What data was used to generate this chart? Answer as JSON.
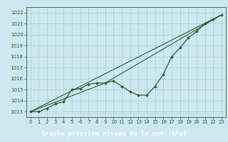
{
  "title": "Graphe pression niveau de la mer (hPa)",
  "bg_color": "#cde8f0",
  "grid_color": "#b0d4dc",
  "line_color": "#2d5a2d",
  "marker_color": "#2d5a2d",
  "xlabel_bg": "#3a6e3a",
  "xlabel_fg": "#ffffff",
  "xlim": [
    -0.5,
    23.5
  ],
  "ylim": [
    1012.5,
    1022.5
  ],
  "yticks": [
    1013,
    1014,
    1015,
    1016,
    1017,
    1018,
    1019,
    1020,
    1021,
    1022
  ],
  "xticks": [
    0,
    1,
    2,
    3,
    4,
    5,
    6,
    7,
    8,
    9,
    10,
    11,
    12,
    13,
    14,
    15,
    16,
    17,
    18,
    19,
    20,
    21,
    22,
    23
  ],
  "hours": [
    0,
    1,
    2,
    3,
    4,
    5,
    6,
    7,
    8,
    9,
    10,
    11,
    12,
    13,
    14,
    15,
    16,
    17,
    18,
    19,
    20,
    21,
    22,
    23
  ],
  "pressure_main": [
    1013.0,
    1013.0,
    1013.3,
    1013.7,
    1013.9,
    1015.0,
    1015.1,
    1015.5,
    1015.6,
    1015.6,
    1015.8,
    1015.3,
    1014.8,
    1014.5,
    1014.5,
    1015.3,
    1016.4,
    1018.0,
    1018.8,
    1019.7,
    1020.3,
    1021.0,
    1021.4,
    1021.8
  ],
  "trend1_x": [
    0,
    23
  ],
  "trend1_y": [
    1013.0,
    1021.8
  ],
  "trend2_x": [
    0,
    9,
    23
  ],
  "trend2_y": [
    1013.0,
    1015.6,
    1021.8
  ]
}
